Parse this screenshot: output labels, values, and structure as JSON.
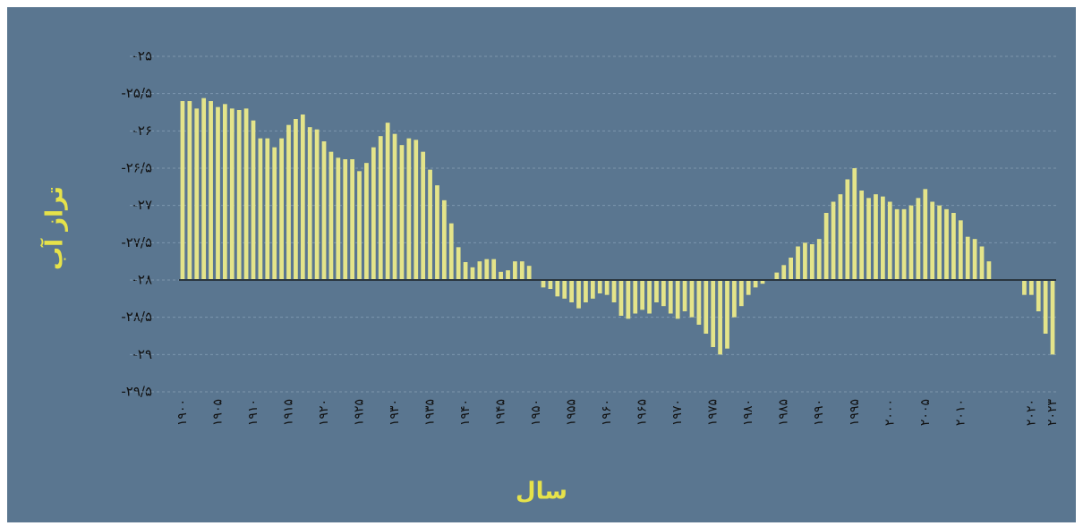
{
  "chart_data": {
    "type": "bar",
    "y_label": "تراز آب",
    "x_label": "سال",
    "categories": [
      "۱۹۰۰",
      null,
      null,
      null,
      null,
      "۱۹۰۵",
      null,
      null,
      null,
      null,
      "۱۹۱۰",
      null,
      null,
      null,
      null,
      "۱۹۱۵",
      null,
      null,
      null,
      null,
      "۱۹۲۰",
      null,
      null,
      null,
      null,
      "۱۹۲۵",
      null,
      null,
      null,
      null,
      "۱۹۳۰",
      null,
      null,
      null,
      null,
      "۱۹۳۵",
      null,
      null,
      null,
      null,
      "۱۹۴۰",
      null,
      null,
      null,
      null,
      "۱۹۴۵",
      null,
      null,
      null,
      null,
      "۱۹۵۰",
      null,
      null,
      null,
      null,
      "۱۹۵۵",
      null,
      null,
      null,
      null,
      "۱۹۶۰",
      null,
      null,
      null,
      null,
      "۱۹۶۵",
      null,
      null,
      null,
      null,
      "۱۹۷۰",
      null,
      null,
      null,
      null,
      "۱۹۷۵",
      null,
      null,
      null,
      null,
      "۱۹۸۰",
      null,
      null,
      null,
      null,
      "۱۹۸۵",
      null,
      null,
      null,
      null,
      "۱۹۹۰",
      null,
      null,
      null,
      null,
      "۱۹۹۵",
      null,
      null,
      null,
      null,
      "۲۰۰۰",
      null,
      null,
      null,
      null,
      "۲۰۰۵",
      null,
      null,
      null,
      null,
      "۲۰۱۰",
      null,
      null,
      null,
      null,
      null,
      null,
      null,
      null,
      null,
      "۲۰۲۰",
      null,
      null,
      "۲۰۲۳"
    ],
    "values": [
      -25.6,
      -25.6,
      -25.7,
      -25.56,
      -25.6,
      -25.68,
      -25.64,
      -25.7,
      -25.72,
      -25.7,
      -25.86,
      -26.1,
      -26.1,
      -26.22,
      -26.1,
      -25.92,
      -25.84,
      -25.78,
      -25.95,
      -25.98,
      -26.14,
      -26.28,
      -26.36,
      -26.38,
      -26.38,
      -26.54,
      -26.43,
      -26.22,
      -26.07,
      -25.89,
      -26.04,
      -26.19,
      -26.1,
      -26.12,
      -26.28,
      -26.52,
      -26.73,
      -26.93,
      -27.24,
      -27.56,
      -27.76,
      -27.83,
      -27.75,
      -27.72,
      -27.72,
      -27.89,
      -27.87,
      -27.75,
      -27.75,
      -27.81,
      -28,
      -28.1,
      -28.12,
      -28.22,
      -28.25,
      -28.3,
      -28.38,
      -28.3,
      -28.25,
      -28.18,
      -28.2,
      -28.3,
      -28.48,
      -28.52,
      -28.45,
      -28.4,
      -28.45,
      -28.3,
      -28.35,
      -28.45,
      -28.52,
      -28.42,
      -28.5,
      -28.6,
      -28.72,
      -28.9,
      -29,
      -28.92,
      -28.5,
      -28.35,
      -28.2,
      -28.1,
      -28.05,
      -28,
      -27.9,
      -27.8,
      -27.7,
      -27.55,
      -27.5,
      -27.52,
      -27.45,
      -27.1,
      -26.95,
      -26.85,
      -26.65,
      -26.5,
      -26.8,
      -26.9,
      -26.85,
      -26.88,
      -26.95,
      -27.05,
      -27.05,
      -27,
      -26.9,
      -26.78,
      -26.95,
      -27,
      -27.05,
      -27.1,
      -27.2,
      -27.42,
      -27.45,
      -27.55,
      -27.75,
      -28,
      -28,
      -28,
      -28,
      -28.2,
      -28.2,
      -28.42,
      -28.72,
      -29
    ],
    "color": "#e4e48a",
    "baseline": -28,
    "ylim": [
      -29.5,
      -25
    ],
    "yticks": [
      {
        "value": -25,
        "label": "-۲۵"
      },
      {
        "value": -25.5,
        "label": "-۲۵/۵"
      },
      {
        "value": -26,
        "label": "-۲۶"
      },
      {
        "value": -26.5,
        "label": "-۲۶/۵"
      },
      {
        "value": -27,
        "label": "-۲۷"
      },
      {
        "value": -27.5,
        "label": "-۲۷/۵"
      },
      {
        "value": -28,
        "label": "-۲۸"
      },
      {
        "value": -28.5,
        "label": "-۲۸/۵"
      },
      {
        "value": -29,
        "label": "-۲۹"
      },
      {
        "value": -29.5,
        "label": "-۲۹/۵"
      }
    ],
    "grid": true
  }
}
